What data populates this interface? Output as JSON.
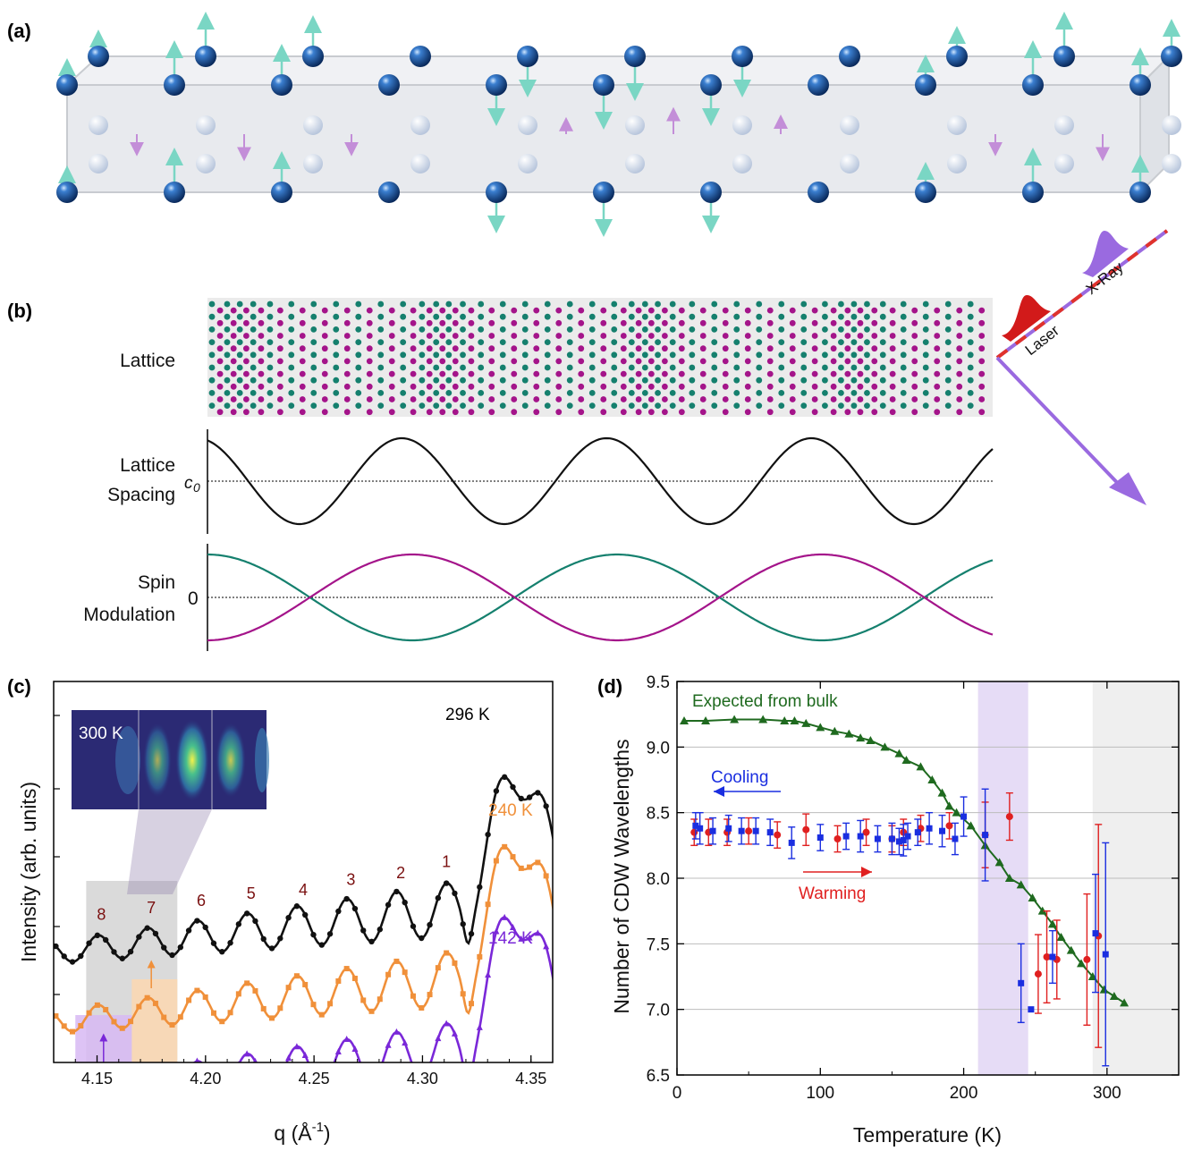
{
  "panel_labels": {
    "a": "(a)",
    "b": "(b)",
    "c": "(c)",
    "d": "(d)"
  },
  "panel_b": {
    "row_labels": {
      "lattice": "Lattice",
      "lattice_spacing_1": "Lattice",
      "lattice_spacing_2": "Spacing",
      "spin_1": "Spin",
      "spin_2": "Modulation"
    },
    "c0_label": "c",
    "c0_sub": "0",
    "zero_label": "0",
    "beam_labels": {
      "laser": "Laser",
      "xray": "X-Ray"
    }
  },
  "colors": {
    "teal": "#15806e",
    "magenta": "#a4148a",
    "atom_dark": "#0d3d7a",
    "arrow_teal": "#7ad6c4",
    "arrow_pink": "#c38ed8",
    "laser_red": "#e0322c",
    "xray_purple": "#9a6ae0",
    "black_curve": "#111111",
    "orange_curve": "#f0903a",
    "purple_curve": "#7a28d8",
    "bulk_green": "#1f6a1f",
    "cooling_blue": "#1a2ee0",
    "warming_red": "#e02020"
  },
  "chart_data": [
    {
      "panel": "(c)",
      "type": "line",
      "xlabel": "q (Å",
      "xlabel_sup": "-1",
      "xlabel_end": ")",
      "ylabel": "Intensity (arb. units)",
      "xlim": [
        4.13,
        4.36
      ],
      "xticks": [
        "4.15",
        "4.20",
        "4.25",
        "4.30",
        "4.35"
      ],
      "inset_label": "300 K",
      "peak_labels": [
        "1",
        "2",
        "3",
        "4",
        "5",
        "6",
        "7",
        "8"
      ],
      "series": [
        {
          "name": "296 K",
          "peak_q": [
            4.311,
            4.29,
            4.267,
            4.245,
            4.221,
            4.198,
            4.175,
            4.152
          ]
        },
        {
          "name": "240 K"
        },
        {
          "name": "142 K"
        }
      ],
      "shaded_bands": [
        {
          "color": "gray",
          "q_range": [
            4.145,
            4.187
          ]
        },
        {
          "color": "orange",
          "q_range": [
            4.166,
            4.187
          ]
        },
        {
          "color": "purple",
          "q_range": [
            4.14,
            4.166
          ]
        }
      ]
    },
    {
      "panel": "(d)",
      "type": "scatter",
      "xlabel": "Temperature (K)",
      "ylabel": "Number of CDW Wavelengths",
      "xlim": [
        0,
        350
      ],
      "ylim": [
        6.5,
        9.5
      ],
      "xticks": [
        "0",
        "100",
        "200",
        "300"
      ],
      "yticks": [
        "6.5",
        "7.0",
        "7.5",
        "8.0",
        "8.5",
        "9.0",
        "9.5"
      ],
      "grid": true,
      "annotations": {
        "bulk": "Expected from bulk",
        "cooling": "Cooling",
        "warming": "Warming"
      },
      "shaded_bands": [
        {
          "color": "purple",
          "x_range": [
            210,
            245
          ]
        },
        {
          "color": "gray",
          "x_range": [
            290,
            350
          ]
        }
      ],
      "series": [
        {
          "name": "Expected from bulk",
          "x": [
            5,
            20,
            40,
            60,
            75,
            82,
            90,
            100,
            110,
            120,
            128,
            135,
            145,
            155,
            160,
            170,
            178,
            185,
            190,
            195,
            205,
            215,
            225,
            232,
            240,
            248,
            255,
            262,
            268,
            275,
            282,
            290,
            298,
            305,
            312
          ],
          "y": [
            9.2,
            9.2,
            9.21,
            9.21,
            9.2,
            9.2,
            9.18,
            9.15,
            9.12,
            9.1,
            9.07,
            9.05,
            9.0,
            8.95,
            8.9,
            8.85,
            8.75,
            8.65,
            8.55,
            8.5,
            8.4,
            8.25,
            8.12,
            8.0,
            7.95,
            7.85,
            7.75,
            7.65,
            7.55,
            7.45,
            7.35,
            7.25,
            7.15,
            7.1,
            7.05
          ]
        },
        {
          "name": "Cooling",
          "x": [
            13,
            16,
            25,
            36,
            45,
            55,
            65,
            80,
            100,
            118,
            128,
            140,
            150,
            155,
            158,
            161,
            168,
            176,
            185,
            194,
            200,
            215,
            240,
            247,
            262,
            292,
            299
          ],
          "y": [
            8.4,
            8.38,
            8.36,
            8.38,
            8.36,
            8.36,
            8.35,
            8.27,
            8.31,
            8.32,
            8.32,
            8.3,
            8.3,
            8.28,
            8.29,
            8.32,
            8.35,
            8.38,
            8.36,
            8.3,
            8.47,
            8.33,
            7.2,
            7.0,
            7.4,
            7.58,
            7.42
          ],
          "err": [
            0.1,
            0.12,
            0.1,
            0.1,
            0.1,
            0.1,
            0.1,
            0.12,
            0.1,
            0.1,
            0.12,
            0.1,
            0.12,
            0.1,
            0.12,
            0.1,
            0.1,
            0.12,
            0.12,
            0.12,
            0.15,
            0.35,
            0.3,
            0.0,
            0.2,
            0.45,
            0.85
          ]
        },
        {
          "name": "Warming",
          "x": [
            12,
            22,
            35,
            50,
            70,
            90,
            112,
            132,
            150,
            158,
            170,
            190,
            215,
            232,
            252,
            258,
            265,
            286,
            294
          ],
          "y": [
            8.35,
            8.35,
            8.35,
            8.36,
            8.33,
            8.37,
            8.3,
            8.35,
            8.3,
            8.35,
            8.38,
            8.4,
            8.33,
            8.47,
            7.27,
            7.4,
            7.38,
            7.38,
            7.56
          ],
          "err": [
            0.1,
            0.1,
            0.1,
            0.1,
            0.1,
            0.12,
            0.1,
            0.1,
            0.1,
            0.1,
            0.1,
            0.1,
            0.25,
            0.18,
            0.3,
            0.35,
            0.3,
            0.5,
            0.85
          ]
        }
      ]
    }
  ]
}
